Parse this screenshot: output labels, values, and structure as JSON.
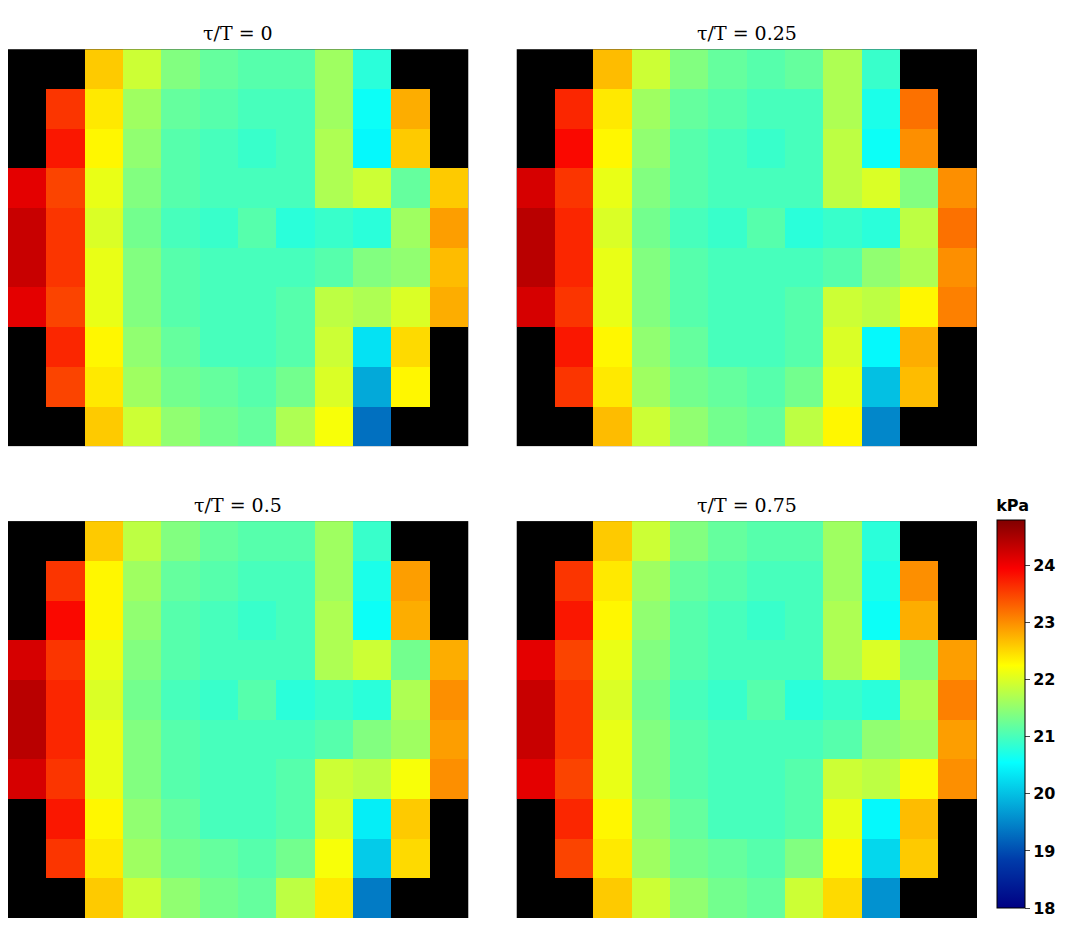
{
  "chart_data": {
    "type": "heatmap",
    "tick_labels": false,
    "colorbar": {
      "title": "kPa",
      "range": [
        18,
        24.8
      ],
      "ticks": [
        18,
        19,
        20,
        21,
        22,
        23,
        24
      ]
    },
    "panels": [
      {
        "title": "τ/T = 0",
        "z": [
          [
            null,
            null,
            22.6,
            21.9,
            21.4,
            21.2,
            21.1,
            21.1,
            21.6,
            20.8,
            null,
            null
          ],
          [
            null,
            23.6,
            22.4,
            21.6,
            21.2,
            21.1,
            21.0,
            21.0,
            21.6,
            20.6,
            22.8,
            null
          ],
          [
            null,
            23.8,
            22.3,
            21.5,
            21.1,
            21.0,
            20.9,
            21.0,
            21.7,
            20.5,
            22.6,
            null
          ],
          [
            24.1,
            23.5,
            22.1,
            21.4,
            21.1,
            21.0,
            21.0,
            21.0,
            21.7,
            21.9,
            21.2,
            22.6
          ],
          [
            24.3,
            23.6,
            22.0,
            21.3,
            21.0,
            20.9,
            21.1,
            20.8,
            20.9,
            20.8,
            21.6,
            22.9
          ],
          [
            24.3,
            23.6,
            22.1,
            21.4,
            21.1,
            21.0,
            21.0,
            21.0,
            21.1,
            21.4,
            21.5,
            22.7
          ],
          [
            24.1,
            23.5,
            22.1,
            21.4,
            21.1,
            21.0,
            21.0,
            21.1,
            21.8,
            21.7,
            22.0,
            22.8
          ],
          [
            null,
            23.7,
            22.3,
            21.5,
            21.2,
            21.0,
            21.0,
            21.1,
            21.9,
            20.3,
            22.5,
            null
          ],
          [
            null,
            23.5,
            22.4,
            21.6,
            21.3,
            21.2,
            21.1,
            21.3,
            22.0,
            19.8,
            22.3,
            null
          ],
          [
            null,
            null,
            22.6,
            21.9,
            21.5,
            21.3,
            21.2,
            21.7,
            22.2,
            19.3,
            null,
            null
          ]
        ]
      },
      {
        "title": "τ/T = 0.25",
        "z": [
          [
            null,
            null,
            22.7,
            21.9,
            21.4,
            21.2,
            21.1,
            21.2,
            21.7,
            20.9,
            null,
            null
          ],
          [
            null,
            23.7,
            22.4,
            21.6,
            21.2,
            21.1,
            21.0,
            21.0,
            21.7,
            20.7,
            23.2,
            null
          ],
          [
            null,
            23.9,
            22.3,
            21.5,
            21.1,
            21.0,
            20.9,
            21.0,
            21.8,
            20.6,
            23.0,
            null
          ],
          [
            24.2,
            23.6,
            22.1,
            21.4,
            21.1,
            21.0,
            21.0,
            21.0,
            21.8,
            22.0,
            21.4,
            23.0
          ],
          [
            24.4,
            23.7,
            22.0,
            21.3,
            21.0,
            20.9,
            21.1,
            20.8,
            20.9,
            20.8,
            21.8,
            23.2
          ],
          [
            24.4,
            23.7,
            22.1,
            21.4,
            21.1,
            21.0,
            21.0,
            21.0,
            21.1,
            21.5,
            21.7,
            23.0
          ],
          [
            24.2,
            23.6,
            22.1,
            21.4,
            21.1,
            21.0,
            21.0,
            21.1,
            21.9,
            21.8,
            22.3,
            23.1
          ],
          [
            null,
            23.8,
            22.3,
            21.5,
            21.2,
            21.0,
            21.0,
            21.1,
            22.0,
            20.5,
            22.8,
            null
          ],
          [
            null,
            23.6,
            22.4,
            21.6,
            21.3,
            21.2,
            21.1,
            21.3,
            22.1,
            20.0,
            22.7,
            null
          ],
          [
            null,
            null,
            22.7,
            21.9,
            21.5,
            21.3,
            21.2,
            21.8,
            22.3,
            19.5,
            null,
            null
          ]
        ]
      },
      {
        "title": "τ/T = 0.5",
        "z": [
          [
            null,
            null,
            22.6,
            21.8,
            21.4,
            21.2,
            21.1,
            21.1,
            21.6,
            20.9,
            null,
            null
          ],
          [
            null,
            23.6,
            22.3,
            21.6,
            21.2,
            21.1,
            21.0,
            21.0,
            21.6,
            20.7,
            22.9,
            null
          ],
          [
            null,
            23.9,
            22.3,
            21.5,
            21.1,
            21.0,
            20.9,
            21.0,
            21.7,
            20.6,
            22.8,
            null
          ],
          [
            24.2,
            23.6,
            22.1,
            21.4,
            21.1,
            21.0,
            21.0,
            21.0,
            21.7,
            21.9,
            21.3,
            22.8
          ],
          [
            24.4,
            23.7,
            22.0,
            21.3,
            21.0,
            20.9,
            21.1,
            20.8,
            20.9,
            20.8,
            21.7,
            23.0
          ],
          [
            24.4,
            23.7,
            22.1,
            21.4,
            21.1,
            21.0,
            21.0,
            21.0,
            21.1,
            21.4,
            21.6,
            22.9
          ],
          [
            24.2,
            23.6,
            22.1,
            21.4,
            21.1,
            21.0,
            21.0,
            21.1,
            21.9,
            21.8,
            22.2,
            23.0
          ],
          [
            null,
            23.8,
            22.3,
            21.5,
            21.2,
            21.0,
            21.0,
            21.1,
            22.0,
            20.4,
            22.6,
            null
          ],
          [
            null,
            23.6,
            22.4,
            21.6,
            21.3,
            21.2,
            21.1,
            21.3,
            22.2,
            20.1,
            22.5,
            null
          ],
          [
            null,
            null,
            22.6,
            21.9,
            21.5,
            21.3,
            21.2,
            21.8,
            22.4,
            19.4,
            null,
            null
          ]
        ]
      },
      {
        "title": "τ/T = 0.75",
        "z": [
          [
            null,
            null,
            22.6,
            21.9,
            21.4,
            21.2,
            21.1,
            21.1,
            21.6,
            20.8,
            null,
            null
          ],
          [
            null,
            23.6,
            22.4,
            21.6,
            21.2,
            21.1,
            21.0,
            21.0,
            21.6,
            20.7,
            23.0,
            null
          ],
          [
            null,
            23.8,
            22.3,
            21.5,
            21.1,
            21.0,
            20.9,
            21.0,
            21.7,
            20.6,
            22.8,
            null
          ],
          [
            24.1,
            23.5,
            22.1,
            21.4,
            21.1,
            21.0,
            21.0,
            21.0,
            21.7,
            22.0,
            21.4,
            22.9
          ],
          [
            24.3,
            23.6,
            22.0,
            21.3,
            21.0,
            20.9,
            21.1,
            20.8,
            20.9,
            20.8,
            21.7,
            23.1
          ],
          [
            24.3,
            23.6,
            22.1,
            21.4,
            21.1,
            21.0,
            21.0,
            21.0,
            21.1,
            21.5,
            21.6,
            22.9
          ],
          [
            24.1,
            23.5,
            22.1,
            21.4,
            21.1,
            21.0,
            21.0,
            21.1,
            21.9,
            21.8,
            22.3,
            23.0
          ],
          [
            null,
            23.7,
            22.3,
            21.5,
            21.2,
            21.0,
            21.0,
            21.1,
            22.1,
            20.5,
            22.7,
            null
          ],
          [
            null,
            23.5,
            22.4,
            21.6,
            21.3,
            21.2,
            21.1,
            21.4,
            22.3,
            20.2,
            22.6,
            null
          ],
          [
            null,
            null,
            22.6,
            21.9,
            21.5,
            21.3,
            21.2,
            21.9,
            22.5,
            19.6,
            null,
            null
          ]
        ]
      }
    ]
  }
}
